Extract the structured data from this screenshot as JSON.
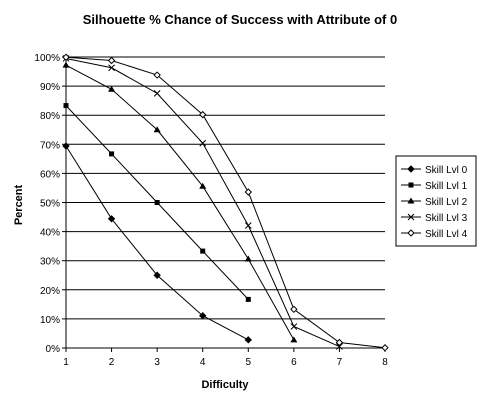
{
  "chart_data": {
    "type": "line",
    "title": "Silhouette % Chance of Success with Attribute of 0",
    "xlabel": "Difficulty",
    "ylabel": "Percent",
    "x": [
      1,
      2,
      3,
      4,
      5,
      6,
      7,
      8
    ],
    "xlim": [
      1,
      8
    ],
    "ylim": [
      0,
      100
    ],
    "y_ticks": [
      "0%",
      "10%",
      "20%",
      "30%",
      "40%",
      "50%",
      "60%",
      "70%",
      "80%",
      "90%",
      "100%"
    ],
    "x_ticks": [
      "1",
      "2",
      "3",
      "4",
      "5",
      "6",
      "7",
      "8"
    ],
    "grid": "horizontal",
    "legend_position": "right",
    "series": [
      {
        "name": "Skill Lvl 0",
        "marker": "diamond",
        "x": [
          1,
          2,
          3,
          4,
          5
        ],
        "values": [
          69.4,
          44.4,
          25,
          11.1,
          2.8
        ]
      },
      {
        "name": "Skill Lvl 1",
        "marker": "square",
        "x": [
          1,
          2,
          3,
          4,
          5
        ],
        "values": [
          83.3,
          66.7,
          50,
          33.3,
          16.7
        ]
      },
      {
        "name": "Skill Lvl 2",
        "marker": "triangle",
        "x": [
          1,
          2,
          3,
          4,
          5,
          6
        ],
        "values": [
          97.2,
          88.9,
          75,
          55.6,
          30.6,
          2.8
        ]
      },
      {
        "name": "Skill Lvl 3",
        "marker": "cross",
        "x": [
          1,
          2,
          3,
          4,
          5,
          6,
          7
        ],
        "values": [
          99.5,
          96.3,
          87.5,
          70.4,
          42.1,
          7.4,
          0.5
        ]
      },
      {
        "name": "Skill Lvl 4",
        "marker": "circle",
        "x": [
          1,
          2,
          3,
          4,
          5,
          6,
          7,
          8
        ],
        "values": [
          99.9,
          98.8,
          93.8,
          80.2,
          53.6,
          13.3,
          1.9,
          0.1
        ]
      }
    ]
  }
}
